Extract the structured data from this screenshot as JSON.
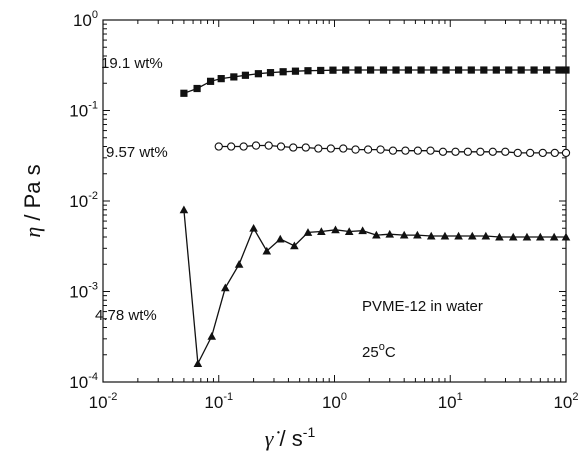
{
  "chart_data": {
    "type": "scatter",
    "title": "",
    "xscale": "log",
    "yscale": "log",
    "xlim": [
      0.01,
      100
    ],
    "ylim": [
      0.0001,
      1
    ],
    "x_ticks": [
      {
        "base": "10",
        "exp": "-2",
        "value": 0.01
      },
      {
        "base": "10",
        "exp": "-1",
        "value": 0.1
      },
      {
        "base": "10",
        "exp": "0",
        "value": 1
      },
      {
        "base": "10",
        "exp": "1",
        "value": 10
      },
      {
        "base": "10",
        "exp": "2",
        "value": 100
      }
    ],
    "y_ticks": [
      {
        "base": "10",
        "exp": "-4",
        "value": 0.0001
      },
      {
        "base": "10",
        "exp": "-3",
        "value": 0.001
      },
      {
        "base": "10",
        "exp": "-2",
        "value": 0.01
      },
      {
        "base": "10",
        "exp": "-1",
        "value": 0.1
      },
      {
        "base": "10",
        "exp": "0",
        "value": 1
      }
    ],
    "xlabel": {
      "symbol": "γ̇",
      "unit": " / s",
      "exp": "-1"
    },
    "ylabel": {
      "symbol": "η",
      "unit": " / Pa s"
    },
    "annotations": {
      "title_line": "PVME-12 in water",
      "temp_value": "25",
      "temp_deg": "o",
      "temp_unit": "C"
    },
    "grid": false,
    "series": [
      {
        "name": "19.1 wt%",
        "marker": "square",
        "filled": true,
        "x": [
          0.05,
          0.065,
          0.085,
          0.105,
          0.135,
          0.17,
          0.22,
          0.28,
          0.36,
          0.46,
          0.59,
          0.76,
          0.97,
          1.25,
          1.6,
          2.05,
          2.65,
          3.4,
          4.35,
          5.6,
          7.2,
          9.2,
          11.8,
          15.2,
          19.5,
          25,
          32,
          41,
          53,
          68,
          87,
          100
        ],
        "y": [
          0.155,
          0.175,
          0.21,
          0.225,
          0.235,
          0.245,
          0.255,
          0.262,
          0.268,
          0.272,
          0.275,
          0.277,
          0.279,
          0.28,
          0.28,
          0.28,
          0.28,
          0.28,
          0.28,
          0.28,
          0.28,
          0.28,
          0.28,
          0.28,
          0.28,
          0.28,
          0.28,
          0.28,
          0.28,
          0.28,
          0.28,
          0.28
        ]
      },
      {
        "name": "9.57 wt%",
        "marker": "circle",
        "filled": false,
        "x": [
          0.1,
          0.128,
          0.164,
          0.21,
          0.27,
          0.345,
          0.44,
          0.565,
          0.725,
          0.93,
          1.19,
          1.52,
          1.95,
          2.5,
          3.2,
          4.1,
          5.25,
          6.75,
          8.65,
          11.1,
          14.2,
          18.2,
          23.3,
          29.9,
          38.3,
          49,
          63,
          80,
          100
        ],
        "y": [
          0.04,
          0.04,
          0.04,
          0.041,
          0.041,
          0.04,
          0.039,
          0.039,
          0.038,
          0.038,
          0.038,
          0.037,
          0.037,
          0.037,
          0.036,
          0.036,
          0.036,
          0.036,
          0.035,
          0.035,
          0.035,
          0.035,
          0.035,
          0.035,
          0.034,
          0.034,
          0.034,
          0.034,
          0.034
        ]
      },
      {
        "name": "4.78 wt%",
        "marker": "triangle",
        "filled": true,
        "x": [
          0.05,
          0.066,
          0.087,
          0.114,
          0.15,
          0.2,
          0.26,
          0.34,
          0.45,
          0.59,
          0.77,
          1.02,
          1.34,
          1.75,
          2.3,
          3.0,
          4.0,
          5.2,
          6.85,
          9.0,
          11.8,
          15.5,
          20.3,
          26.6,
          35,
          46,
          60,
          79,
          100
        ],
        "y": [
          0.008,
          0.00016,
          0.00032,
          0.0011,
          0.002,
          0.005,
          0.0028,
          0.0038,
          0.0032,
          0.0045,
          0.0046,
          0.0048,
          0.0046,
          0.0047,
          0.0042,
          0.0043,
          0.0042,
          0.0042,
          0.0041,
          0.0041,
          0.0041,
          0.0041,
          0.0041,
          0.004,
          0.004,
          0.004,
          0.004,
          0.004,
          0.004
        ]
      }
    ]
  }
}
